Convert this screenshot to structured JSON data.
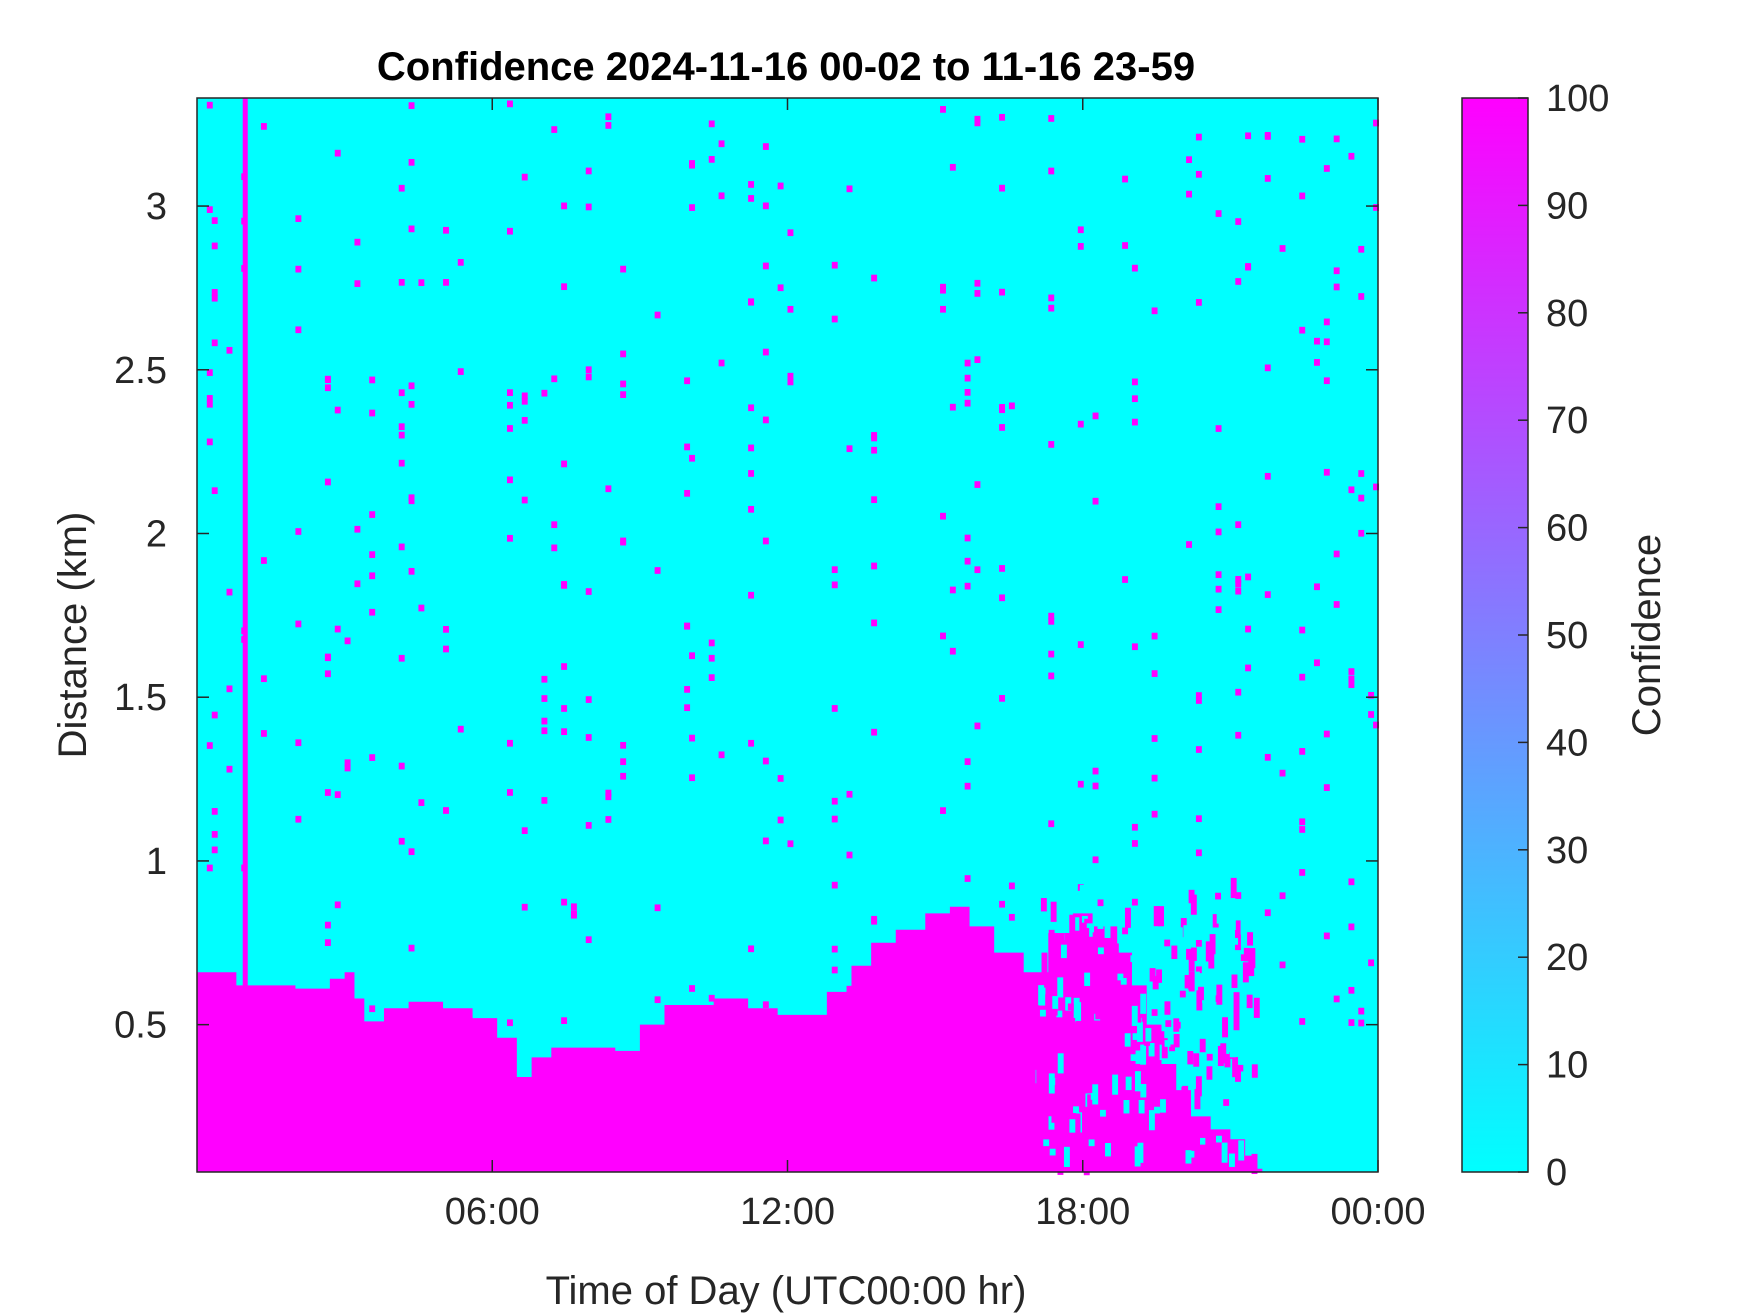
{
  "chart_data": {
    "type": "heatmap",
    "title": "Confidence 2024-11-16 00-02 to 11-16 23-59",
    "xlabel": "Time of Day (UTC00:00 hr)",
    "ylabel": "Distance (km)",
    "colorbar_label": "Confidence",
    "x_unit": "hours (UTC)",
    "xlim": [
      0,
      24
    ],
    "ylim": [
      0.05,
      3.33
    ],
    "clim": [
      0,
      100
    ],
    "x_ticks": [
      {
        "value": 6,
        "label": "06:00"
      },
      {
        "value": 12,
        "label": "12:00"
      },
      {
        "value": 18,
        "label": "18:00"
      },
      {
        "value": 24,
        "label": "00:00"
      }
    ],
    "y_ticks": [
      {
        "value": 0.5,
        "label": "0.5"
      },
      {
        "value": 1.0,
        "label": "1"
      },
      {
        "value": 1.5,
        "label": "1.5"
      },
      {
        "value": 2.0,
        "label": "2"
      },
      {
        "value": 2.5,
        "label": "2.5"
      },
      {
        "value": 3.0,
        "label": "3"
      }
    ],
    "colorbar_ticks": [
      {
        "value": 0,
        "label": "0"
      },
      {
        "value": 10,
        "label": "10"
      },
      {
        "value": 20,
        "label": "20"
      },
      {
        "value": 30,
        "label": "30"
      },
      {
        "value": 40,
        "label": "40"
      },
      {
        "value": 50,
        "label": "50"
      },
      {
        "value": 60,
        "label": "60"
      },
      {
        "value": 70,
        "label": "70"
      },
      {
        "value": 80,
        "label": "80"
      },
      {
        "value": 90,
        "label": "90"
      },
      {
        "value": 100,
        "label": "100"
      }
    ],
    "colormap": {
      "low": "#00ffff",
      "high": "#ff00ff"
    },
    "background_value": 0,
    "high_confidence_layer": {
      "value": 100,
      "top_boundary_km": [
        {
          "t": 0.0,
          "top": 0.66
        },
        {
          "t": 0.8,
          "top": 0.62
        },
        {
          "t": 1.2,
          "top": 0.62
        },
        {
          "t": 2.0,
          "top": 0.61
        },
        {
          "t": 2.7,
          "top": 0.64
        },
        {
          "t": 3.0,
          "top": 0.66
        },
        {
          "t": 3.2,
          "top": 0.58
        },
        {
          "t": 3.4,
          "top": 0.51
        },
        {
          "t": 3.8,
          "top": 0.55
        },
        {
          "t": 4.3,
          "top": 0.57
        },
        {
          "t": 5.0,
          "top": 0.55
        },
        {
          "t": 5.6,
          "top": 0.52
        },
        {
          "t": 6.1,
          "top": 0.46
        },
        {
          "t": 6.5,
          "top": 0.34
        },
        {
          "t": 6.8,
          "top": 0.4
        },
        {
          "t": 7.2,
          "top": 0.43
        },
        {
          "t": 7.8,
          "top": 0.43
        },
        {
          "t": 8.5,
          "top": 0.42
        },
        {
          "t": 9.0,
          "top": 0.5
        },
        {
          "t": 9.5,
          "top": 0.56
        },
        {
          "t": 10.5,
          "top": 0.58
        },
        {
          "t": 11.2,
          "top": 0.55
        },
        {
          "t": 11.8,
          "top": 0.53
        },
        {
          "t": 12.3,
          "top": 0.53
        },
        {
          "t": 12.8,
          "top": 0.6
        },
        {
          "t": 13.3,
          "top": 0.68
        },
        {
          "t": 13.7,
          "top": 0.75
        },
        {
          "t": 14.2,
          "top": 0.79
        },
        {
          "t": 14.8,
          "top": 0.84
        },
        {
          "t": 15.3,
          "top": 0.86
        },
        {
          "t": 15.7,
          "top": 0.8
        },
        {
          "t": 16.2,
          "top": 0.72
        },
        {
          "t": 16.8,
          "top": 0.66
        },
        {
          "t": 17.3,
          "top": 0.78
        },
        {
          "t": 17.8,
          "top": 0.84
        },
        {
          "t": 18.2,
          "top": 0.8
        },
        {
          "t": 18.7,
          "top": 0.72
        },
        {
          "t": 19.0,
          "top": 0.62
        },
        {
          "t": 19.3,
          "top": 0.5
        },
        {
          "t": 19.6,
          "top": 0.38
        },
        {
          "t": 19.9,
          "top": 0.3
        },
        {
          "t": 20.2,
          "top": 0.22
        },
        {
          "t": 20.6,
          "top": 0.18
        },
        {
          "t": 21.0,
          "top": 0.15
        },
        {
          "t": 21.3,
          "top": 0.1
        },
        {
          "t": 21.5,
          "top": 0.06
        }
      ]
    },
    "vertical_streak": {
      "t": 0.97,
      "value": 100,
      "from_km": 0.05,
      "to_km": 3.33
    },
    "scattered_cells_value": 100,
    "scattered_cells_columns_h": [
      0.2,
      0.3,
      0.6,
      0.9,
      1.3,
      2.0,
      2.6,
      2.8,
      3.0,
      3.2,
      3.5,
      4.1,
      4.3,
      4.5,
      5.0,
      5.3,
      6.3,
      6.6,
      7.0,
      7.2,
      7.4,
      7.6,
      7.9,
      8.3,
      8.6,
      9.3,
      9.9,
      10.0,
      10.4,
      10.6,
      11.2,
      11.5,
      11.8,
      12.0,
      12.9,
      13.2,
      13.7,
      15.1,
      15.3,
      15.6,
      15.8,
      16.3,
      16.5,
      17.3,
      17.9,
      18.2,
      18.8,
      19.0,
      19.4,
      20.1,
      20.3,
      20.7,
      21.1,
      21.3,
      21.7,
      22.0,
      22.4,
      22.7,
      22.9,
      23.1,
      23.4,
      23.6,
      23.8,
      23.9
    ]
  }
}
